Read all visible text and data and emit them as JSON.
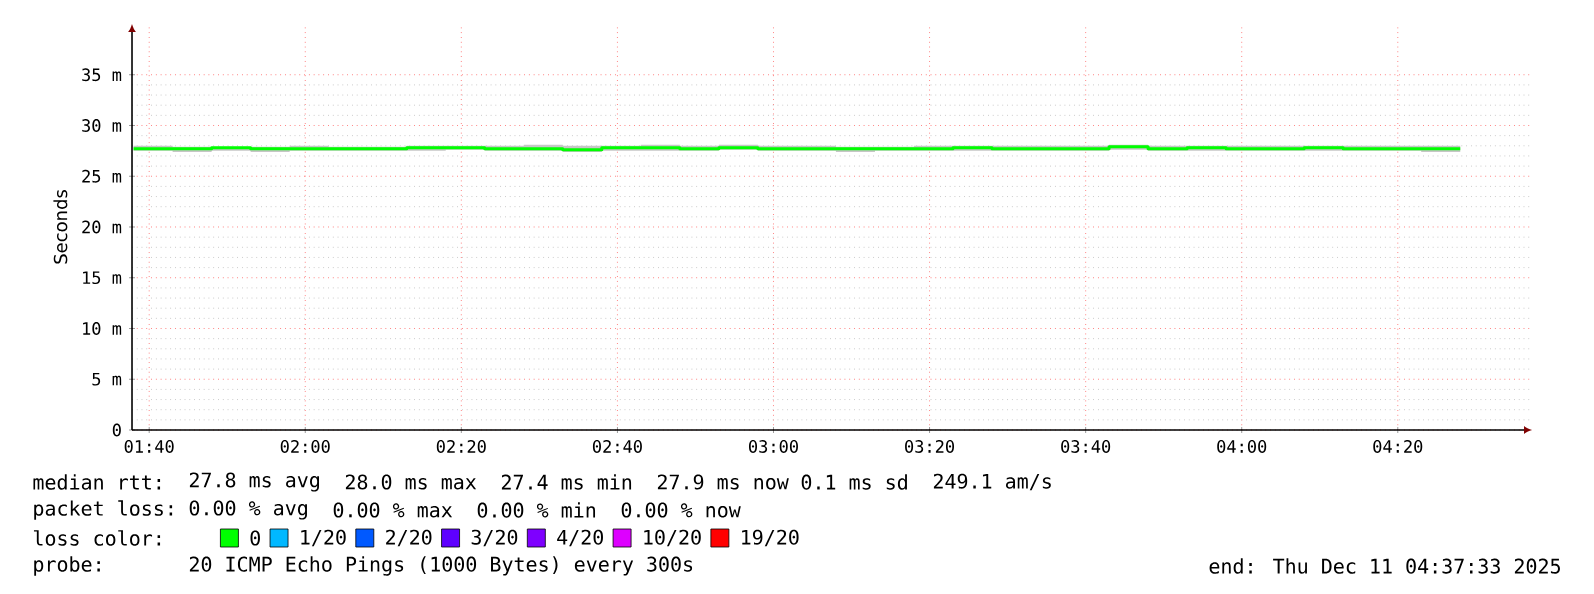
{
  "chart_data": {
    "type": "step",
    "ylabel": "Seconds",
    "legend_title": "loss color:",
    "x": [
      1.6333,
      1.7167,
      1.8,
      1.8833,
      1.9667,
      2.05,
      2.1333,
      2.2167,
      2.3,
      2.3833,
      2.4667,
      2.55,
      2.6333,
      2.7167,
      2.8,
      2.8833,
      2.9667,
      3.05,
      3.1333,
      3.2167,
      3.3,
      3.3833,
      3.4667,
      3.55,
      3.6333,
      3.7167,
      3.8,
      3.8833,
      3.9667,
      4.05,
      4.1333,
      4.2167,
      4.3,
      4.3833,
      4.4667
    ],
    "series": [
      {
        "name": "0",
        "color": "#00ff00",
        "values": [
          27.7,
          27.7,
          27.8,
          27.7,
          27.7,
          27.7,
          27.7,
          27.8,
          27.8,
          27.7,
          27.7,
          27.6,
          27.8,
          27.8,
          27.7,
          27.8,
          27.7,
          27.7,
          27.7,
          27.7,
          27.7,
          27.8,
          27.7,
          27.7,
          27.7,
          27.9,
          27.7,
          27.8,
          27.7,
          27.7,
          27.8,
          27.7,
          27.7,
          27.7,
          27.7
        ],
        "lower": [
          27.5,
          27.4,
          27.5,
          27.4,
          27.5,
          27.5,
          27.5,
          27.5,
          27.6,
          27.5,
          27.5,
          27.4,
          27.5,
          27.5,
          27.5,
          27.6,
          27.5,
          27.5,
          27.4,
          27.5,
          27.5,
          27.5,
          27.5,
          27.5,
          27.5,
          27.6,
          27.5,
          27.5,
          27.5,
          27.5,
          27.5,
          27.5,
          27.5,
          27.4,
          27.5
        ],
        "upper": [
          28.0,
          27.9,
          27.9,
          27.9,
          28.0,
          27.9,
          27.9,
          28.0,
          28.0,
          28.0,
          28.1,
          28.0,
          28.0,
          28.1,
          28.0,
          28.1,
          28.0,
          28.0,
          27.9,
          27.9,
          28.0,
          28.0,
          28.0,
          28.0,
          28.0,
          28.1,
          28.0,
          28.0,
          28.0,
          28.0,
          28.0,
          28.0,
          28.0,
          28.0,
          28.0
        ]
      },
      {
        "name": "1/20",
        "color": "#00b8ff",
        "values": [
          null,
          null,
          null,
          null,
          null,
          null,
          null,
          null,
          null,
          null,
          null,
          null,
          null,
          null,
          null,
          null,
          null,
          null,
          null,
          null,
          null,
          null,
          null,
          null,
          null,
          null,
          null,
          null,
          null,
          null,
          null,
          null,
          null,
          null,
          null
        ]
      },
      {
        "name": "2/20",
        "color": "#0059ff",
        "values": [
          null,
          null,
          null,
          null,
          null,
          null,
          null,
          null,
          null,
          null,
          null,
          null,
          null,
          null,
          null,
          null,
          null,
          null,
          null,
          null,
          null,
          null,
          null,
          null,
          null,
          null,
          null,
          null,
          null,
          null,
          null,
          null,
          null,
          null,
          null
        ]
      },
      {
        "name": "3/20",
        "color": "#5e00ff",
        "values": [
          null,
          null,
          null,
          null,
          null,
          null,
          null,
          null,
          null,
          null,
          null,
          null,
          null,
          null,
          null,
          null,
          null,
          null,
          null,
          null,
          null,
          null,
          null,
          null,
          null,
          null,
          null,
          null,
          null,
          null,
          null,
          null,
          null,
          null,
          null
        ]
      },
      {
        "name": "4/20",
        "color": "#7e00ff",
        "values": [
          null,
          null,
          null,
          null,
          null,
          null,
          null,
          null,
          null,
          null,
          null,
          null,
          null,
          null,
          null,
          null,
          null,
          null,
          null,
          null,
          null,
          null,
          null,
          null,
          null,
          null,
          null,
          null,
          null,
          null,
          null,
          null,
          null,
          null,
          null
        ]
      },
      {
        "name": "10/20",
        "color": "#dd00ff",
        "values": [
          null,
          null,
          null,
          null,
          null,
          null,
          null,
          null,
          null,
          null,
          null,
          null,
          null,
          null,
          null,
          null,
          null,
          null,
          null,
          null,
          null,
          null,
          null,
          null,
          null,
          null,
          null,
          null,
          null,
          null,
          null,
          null,
          null,
          null,
          null
        ]
      },
      {
        "name": "19/20",
        "color": "#ff0000",
        "values": [
          null,
          null,
          null,
          null,
          null,
          null,
          null,
          null,
          null,
          null,
          null,
          null,
          null,
          null,
          null,
          null,
          null,
          null,
          null,
          null,
          null,
          null,
          null,
          null,
          null,
          null,
          null,
          null,
          null,
          null,
          null,
          null,
          null,
          null,
          null
        ]
      }
    ],
    "xlim": [
      1.63,
      4.62
    ],
    "ylim": [
      0,
      40
    ],
    "xticks": [
      {
        "value": 1.6667,
        "label": "01:40"
      },
      {
        "value": 2.0,
        "label": "02:00"
      },
      {
        "value": 2.3333,
        "label": "02:20"
      },
      {
        "value": 2.6667,
        "label": "02:40"
      },
      {
        "value": 3.0,
        "label": "03:00"
      },
      {
        "value": 3.3333,
        "label": "03:20"
      },
      {
        "value": 3.6667,
        "label": "03:40"
      },
      {
        "value": 4.0,
        "label": "04:00"
      },
      {
        "value": 4.3333,
        "label": "04:20"
      }
    ],
    "yticks": [
      0,
      {
        "value": 5,
        "label": "5 m"
      },
      {
        "value": 10,
        "label": "10 m"
      },
      {
        "value": 15,
        "label": "15 m"
      },
      {
        "value": 20,
        "label": "20 m"
      },
      {
        "value": 25,
        "label": "25 m"
      },
      {
        "value": 30,
        "label": "30 m"
      },
      {
        "value": 35,
        "label": "35 m"
      }
    ],
    "grid": true,
    "legend": "bottom",
    "marker": "none",
    "line_style": "solid",
    "annotations": [
      "median rtt:",
      "27.8 ms avg",
      "28.0 ms max",
      "27.4 ms min",
      "27.9 ms now",
      "0.1 ms sd",
      "249.1   am/s",
      "packet loss:",
      "0.00 % avg",
      "0.00 % max",
      "0.00 % min",
      "0.00 % now",
      "probe:",
      "20 ICMP Echo Pings (1000 Bytes) every 300s",
      "end: Thu Dec 11 04:37:33 2025"
    ]
  }
}
